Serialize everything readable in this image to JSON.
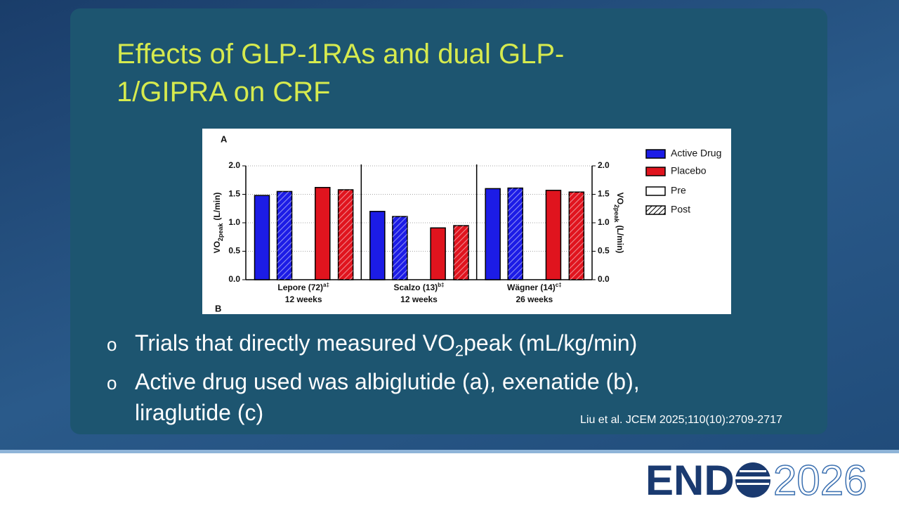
{
  "slide": {
    "title_lines": [
      "Effects of GLP-1RAs and dual GLP-",
      "1/GIPRA on CRF"
    ],
    "bullets": [
      {
        "before": "Trials that directly measured VO",
        "sub": "2",
        "after": "peak (mL/kg/min)"
      },
      {
        "before": "Active drug used was albiglutide (a), exenatide (b), liraglutide (c)"
      }
    ],
    "citation": "Liu et al. JCEM 2025;110(10):2709-2717",
    "logo": {
      "left": "END",
      "right": "2026"
    }
  },
  "chart_data": {
    "type": "bar",
    "panel_labels": [
      "A",
      "B"
    ],
    "y_label": {
      "base": "VO",
      "sub": "2peak",
      "unit": "(L/min)"
    },
    "categories": [
      {
        "name": "Lepore (72)",
        "sup": "a‡",
        "duration": "12 weeks"
      },
      {
        "name": "Scalzo (13)",
        "sup": "b‡",
        "duration": "12 weeks"
      },
      {
        "name": "Wägner (14)",
        "sup": "c‡",
        "duration": "26 weeks"
      }
    ],
    "phases": [
      "Pre",
      "Post"
    ],
    "series": [
      {
        "name": "Active Drug",
        "color": "#1c1ce6",
        "pre": [
          1.48,
          1.2,
          1.6
        ],
        "post": [
          1.55,
          1.11,
          1.61
        ]
      },
      {
        "name": "Placebo",
        "color": "#e0141e",
        "pre": [
          1.62,
          0.91,
          1.57
        ],
        "post": [
          1.58,
          0.95,
          1.54
        ]
      }
    ],
    "ylim": [
      0,
      2
    ],
    "yticks": [
      {
        "value": 0,
        "label": "0.0"
      },
      0.5,
      {
        "value": 1,
        "label": "1.0"
      },
      1.5,
      {
        "value": 2,
        "label": "2.0"
      }
    ],
    "y2lim": [
      0,
      2
    ],
    "y2ticks": [
      {
        "value": 0,
        "label": "0.0"
      },
      0.5,
      {
        "value": 1,
        "label": "1.0"
      },
      1.5,
      {
        "value": 2,
        "label": "2.0"
      }
    ],
    "grid": true
  }
}
